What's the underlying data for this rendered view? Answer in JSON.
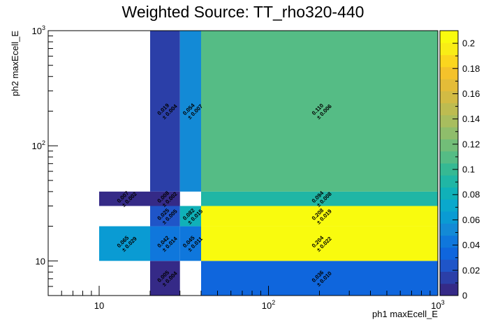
{
  "chart_data": {
    "type": "heatmap",
    "title": "Weighted Source: TT_rho320-440",
    "xlabel": "ph1 maxEcell_E",
    "ylabel": "ph2 maxEcell_E",
    "xscale": "log",
    "yscale": "log",
    "xlim": [
      5,
      1000
    ],
    "ylim": [
      5,
      1000
    ],
    "x_ticks": [
      "10",
      "10^2",
      "10^3"
    ],
    "y_ticks": [
      "10",
      "10^2",
      "10^3"
    ],
    "colorbar": {
      "range": [
        0,
        0.21
      ],
      "tick_labels": [
        "0",
        "0.02",
        "0.04",
        "0.06",
        "0.08",
        "0.1",
        "0.12",
        "0.14",
        "0.16",
        "0.18",
        "0.2"
      ],
      "colors": [
        "#352a87",
        "#2b3fa8",
        "#1f55c8",
        "#0f66dd",
        "#0f77dc",
        "#138ad6",
        "#0a9bd3",
        "#0aa8cc",
        "#10b1b8",
        "#20b6a5",
        "#36b993",
        "#55bc85",
        "#72bd78",
        "#8fbd6b",
        "#a8bd5e",
        "#bdbc51",
        "#d2bb44",
        "#e4bc38",
        "#f4c22b",
        "#fbd61e",
        "#f9ed16",
        "#f9fb0e"
      ]
    },
    "cells": [
      {
        "x": [
          20,
          30
        ],
        "y": [
          5,
          10
        ],
        "value": 0.005,
        "error": 0.004,
        "label": "0.005",
        "err_label": "± 0.004"
      },
      {
        "x": [
          40,
          1000
        ],
        "y": [
          5,
          10
        ],
        "value": 0.036,
        "error": 0.01,
        "label": "0.036",
        "err_label": "± 0.010"
      },
      {
        "x": [
          10,
          20
        ],
        "y": [
          10,
          20
        ],
        "value": 0.065,
        "error": 0.029,
        "label": "0.065",
        "err_label": "± 0.029"
      },
      {
        "x": [
          20,
          30
        ],
        "y": [
          10,
          20
        ],
        "value": 0.042,
        "error": 0.014,
        "label": "0.042",
        "err_label": "± 0.014"
      },
      {
        "x": [
          30,
          40
        ],
        "y": [
          10,
          20
        ],
        "value": 0.045,
        "error": 0.011,
        "label": "0.045",
        "err_label": "± 0.011"
      },
      {
        "x": [
          40,
          1000
        ],
        "y": [
          10,
          20
        ],
        "value": 0.204,
        "error": 0.022,
        "label": "0.204",
        "err_label": "± 0.022"
      },
      {
        "x": [
          20,
          30
        ],
        "y": [
          20,
          30
        ],
        "value": 0.025,
        "error": 0.005,
        "label": "0.025",
        "err_label": "± 0.005"
      },
      {
        "x": [
          30,
          40
        ],
        "y": [
          20,
          30
        ],
        "value": 0.082,
        "error": 0.015,
        "label": "0.082",
        "err_label": "± 0.015"
      },
      {
        "x": [
          40,
          1000
        ],
        "y": [
          20,
          30
        ],
        "value": 0.208,
        "error": 0.019,
        "label": "0.208",
        "err_label": "± 0.019"
      },
      {
        "x": [
          10,
          20
        ],
        "y": [
          30,
          40
        ],
        "value": 0.007,
        "error": 0.002,
        "label": "0.007",
        "err_label": "± 0.002"
      },
      {
        "x": [
          20,
          30
        ],
        "y": [
          30,
          40
        ],
        "value": 0.008,
        "error": 0.002,
        "label": "0.008",
        "err_label": "± 0.002"
      },
      {
        "x": [
          40,
          1000
        ],
        "y": [
          30,
          40
        ],
        "value": 0.094,
        "error": 0.008,
        "label": "0.094",
        "err_label": "± 0.008"
      },
      {
        "x": [
          20,
          30
        ],
        "y": [
          40,
          1000
        ],
        "value": 0.019,
        "error": 0.004,
        "label": "0.019",
        "err_label": "± 0.004"
      },
      {
        "x": [
          30,
          40
        ],
        "y": [
          40,
          1000
        ],
        "value": 0.054,
        "error": 0.007,
        "label": "0.054",
        "err_label": "± 0.007"
      },
      {
        "x": [
          40,
          1000
        ],
        "y": [
          40,
          1000
        ],
        "value": 0.11,
        "error": 0.006,
        "label": "0.110",
        "err_label": "± 0.006"
      }
    ],
    "grid": false,
    "legend": "colorbar-right"
  }
}
